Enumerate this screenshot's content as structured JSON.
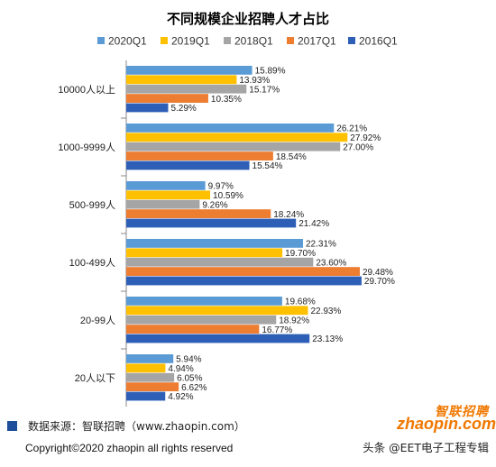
{
  "chart_data": {
    "type": "bar",
    "orientation": "horizontal",
    "title": "不同规模企业招聘人才占比",
    "categories": [
      "10000人以上",
      "1000-9999人",
      "500-999人",
      "100-499人",
      "20-99人",
      "20人以下"
    ],
    "series": [
      {
        "name": "2020Q1",
        "color": "#5b9bd5",
        "values": [
          15.89,
          26.21,
          9.97,
          22.31,
          19.68,
          5.94
        ]
      },
      {
        "name": "2019Q1",
        "color": "#ffc000",
        "values": [
          13.93,
          27.92,
          10.59,
          19.7,
          22.93,
          4.94
        ]
      },
      {
        "name": "2018Q1",
        "color": "#a5a5a5",
        "values": [
          15.17,
          27.0,
          9.26,
          23.6,
          18.92,
          6.05
        ]
      },
      {
        "name": "2017Q1",
        "color": "#ed7d31",
        "values": [
          10.35,
          18.54,
          18.24,
          29.48,
          16.77,
          6.62
        ]
      },
      {
        "name": "2016Q1",
        "color": "#2e5fb7",
        "values": [
          5.29,
          15.54,
          21.42,
          29.7,
          23.13,
          4.92
        ]
      }
    ],
    "value_labels": [
      [
        "15.89%",
        "26.21%",
        "9.97%",
        "22.31%",
        "19.68%",
        "5.94%"
      ],
      [
        "13.93%",
        "27.92%",
        "10.59%",
        "19.70%",
        "22.93%",
        "4.94%"
      ],
      [
        "15.17%",
        "27.00%",
        "9.26%",
        "23.60%",
        "18.92%",
        "6.05%"
      ],
      [
        "10.35%",
        "18.54%",
        "18.24%",
        "29.48%",
        "16.77%",
        "6.62%"
      ],
      [
        "5.29%",
        "15.54%",
        "21.42%",
        "29.70%",
        "23.13%",
        "4.92%"
      ]
    ],
    "xlim": [
      0,
      36
    ],
    "legend_position": "top",
    "grid": false
  },
  "footer": {
    "source": "数据来源：智联招聘（www.zhaopin.com）",
    "copyright": "Copyright©2020 zhaopin all rights reserved",
    "watermark": "头条 @EET电子工程专辑",
    "logo_cn": "智联招聘",
    "logo_en": "zhaopin.com"
  }
}
